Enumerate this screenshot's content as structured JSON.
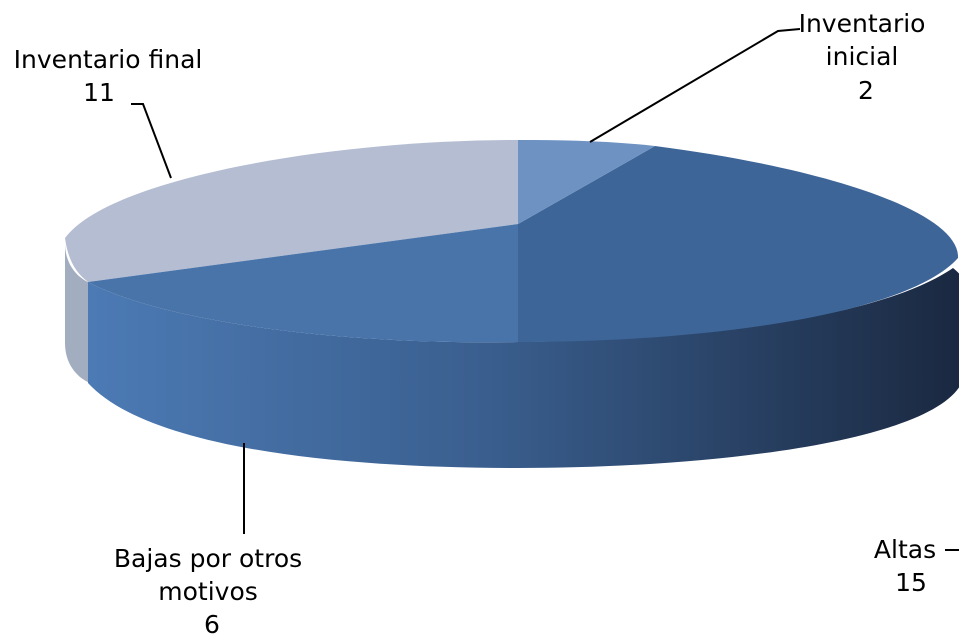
{
  "chart_data": {
    "type": "pie",
    "style": "3d",
    "categories": [
      "Inventario inicial",
      "Altas",
      "Bajas por otros motivos",
      "Inventario final"
    ],
    "values": [
      2,
      15,
      6,
      11
    ],
    "labels": [
      {
        "lines": [
          "Inventario",
          "inicial"
        ],
        "value": "2"
      },
      {
        "lines": [
          "Altas"
        ],
        "value": "15"
      },
      {
        "lines": [
          "Bajas por otros",
          "motivos"
        ],
        "value": "6"
      },
      {
        "lines": [
          "Inventario final"
        ],
        "value": "11"
      }
    ],
    "colors": {
      "inicial": "#6e93c3",
      "altas": "#3d6598",
      "bajas": "#4874aa",
      "final": "#b4bdd1",
      "final_side": "#a3adc0",
      "side_light": "#4c7ab4",
      "side_dark": "#1a2840"
    },
    "legend": "none"
  }
}
